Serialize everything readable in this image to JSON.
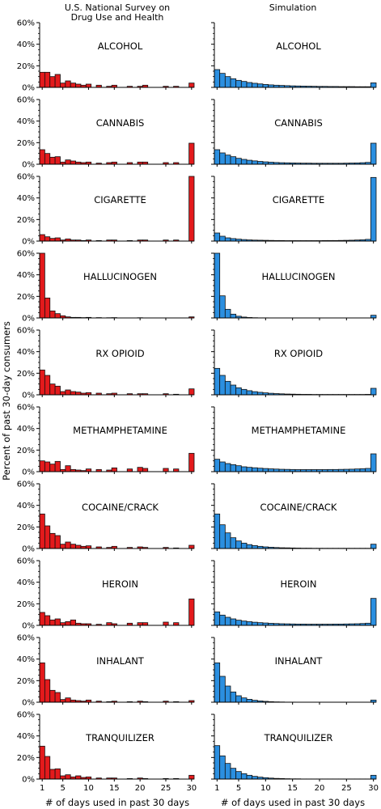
{
  "chart_data": {
    "type": "bar",
    "column_titles": [
      "U.S. National Survey on\nDrug Use and Health",
      "Simulation"
    ],
    "xlabel": "# of days used in past 30 days",
    "ylabel": "Percent of past 30-day consumers",
    "x_ticks": [
      1,
      5,
      10,
      15,
      20,
      25,
      30
    ],
    "y_ticks": [
      "0%",
      "20%",
      "40%",
      "60%"
    ],
    "ylim": [
      0,
      60
    ],
    "xlim": [
      0.5,
      30.5
    ],
    "colors": {
      "survey": "#e31a1c",
      "simulation": "#2b8fe0",
      "edge": "#111111"
    },
    "panels": [
      {
        "drug": "ALCOHOL",
        "survey": [
          14,
          14,
          10,
          12,
          4,
          6,
          4,
          3,
          2,
          3,
          0,
          2,
          0,
          1,
          2,
          0,
          0,
          1,
          0,
          1,
          2,
          0,
          0,
          0,
          1,
          0,
          1,
          0,
          0,
          4
        ],
        "simulation": [
          16.5,
          13,
          10,
          8,
          6.5,
          5.5,
          4.5,
          3.8,
          3.2,
          2.7,
          2.3,
          2,
          1.8,
          1.6,
          1.4,
          1.3,
          1.2,
          1.1,
          1,
          0.9,
          0.9,
          0.8,
          0.8,
          0.7,
          0.7,
          0.7,
          0.6,
          0.6,
          0.6,
          4.2
        ]
      },
      {
        "drug": "CANNABIS",
        "survey": [
          13.5,
          10,
          6.5,
          7,
          2,
          4,
          3,
          2,
          1.5,
          2,
          0,
          1,
          0,
          1.5,
          2,
          0,
          0,
          1.5,
          0,
          2,
          2,
          0,
          0,
          0,
          1.5,
          0,
          1.5,
          0,
          0,
          19.5
        ],
        "simulation": [
          13.5,
          10.5,
          8.5,
          7,
          5.5,
          4.5,
          3.7,
          3.1,
          2.6,
          2.2,
          1.9,
          1.6,
          1.4,
          1.3,
          1.2,
          1.1,
          1,
          1,
          0.9,
          0.9,
          0.9,
          0.9,
          0.9,
          0.9,
          1,
          1.1,
          1.2,
          1.4,
          1.7,
          19.5
        ]
      },
      {
        "drug": "CIGARETTE",
        "survey": [
          6,
          4,
          2.5,
          3,
          1,
          2,
          1,
          1,
          0.5,
          1,
          0,
          0.5,
          0,
          1,
          1,
          0,
          0,
          0.5,
          0,
          1,
          1,
          0,
          0,
          0,
          1,
          0,
          1,
          0,
          0,
          61
        ],
        "simulation": [
          7.5,
          4.5,
          3,
          2.3,
          1.8,
          1.4,
          1.1,
          0.9,
          0.8,
          0.7,
          0.6,
          0.5,
          0.5,
          0.4,
          0.4,
          0.4,
          0.4,
          0.4,
          0.4,
          0.4,
          0.5,
          0.5,
          0.5,
          0.6,
          0.7,
          0.8,
          1,
          1.2,
          1.6,
          59
        ]
      },
      {
        "drug": "HALLUCINOGEN",
        "survey": [
          60,
          18.5,
          6.5,
          4,
          2,
          1,
          0.5,
          0.5,
          0.3,
          0.5,
          0,
          0.3,
          0,
          0.2,
          0.3,
          0,
          0,
          0,
          0,
          0.2,
          0,
          0,
          0,
          0,
          0,
          0,
          0,
          0,
          0,
          1
        ],
        "simulation": [
          60,
          20.5,
          8,
          3.5,
          1.6,
          0.8,
          0.4,
          0.2,
          0.1,
          0.1,
          0,
          0,
          0,
          0,
          0,
          0,
          0,
          0,
          0,
          0,
          0,
          0,
          0,
          0,
          0,
          0,
          0,
          0,
          0,
          2.5
        ]
      },
      {
        "drug": "RX OPIOID",
        "survey": [
          23,
          18,
          10,
          8,
          3,
          4.5,
          3,
          2.5,
          1.5,
          2,
          0,
          1.5,
          0,
          1,
          1.5,
          0,
          0,
          1,
          0,
          1,
          1,
          0,
          0,
          0,
          1,
          0,
          0.5,
          0,
          0,
          5.5
        ],
        "simulation": [
          24.5,
          18,
          12.5,
          9,
          6.5,
          5,
          3.8,
          2.9,
          2.3,
          1.8,
          1.4,
          1.1,
          0.9,
          0.7,
          0.6,
          0.5,
          0.4,
          0.4,
          0.3,
          0.3,
          0.3,
          0.3,
          0.3,
          0.3,
          0.3,
          0.3,
          0.3,
          0.3,
          0.4,
          6
        ]
      },
      {
        "drug": "METHAMPHETAMINE",
        "survey": [
          10,
          9,
          7,
          9.5,
          2,
          5.5,
          2,
          1.5,
          1,
          2.5,
          0,
          2,
          0,
          1.5,
          3.5,
          0,
          0,
          2.5,
          0,
          4,
          3,
          0,
          0,
          0,
          3,
          0,
          2.5,
          0,
          0,
          17
        ],
        "simulation": [
          11.5,
          9,
          7.5,
          6.5,
          5.5,
          4.5,
          4,
          3.6,
          3.2,
          2.9,
          2.6,
          2.4,
          2.2,
          2.1,
          2,
          1.9,
          1.9,
          1.9,
          1.9,
          1.9,
          1.9,
          2,
          2,
          2.1,
          2.2,
          2.3,
          2.5,
          2.7,
          3,
          16.5
        ]
      },
      {
        "drug": "COCAINE/CRACK",
        "survey": [
          32,
          21,
          14,
          12,
          4,
          6,
          4,
          3,
          2,
          2.5,
          0,
          1.5,
          0,
          1,
          2,
          0,
          0,
          1,
          0,
          1.5,
          1,
          0,
          0,
          0,
          1,
          0,
          0.5,
          0,
          0,
          3
        ],
        "simulation": [
          32,
          22,
          14.5,
          10,
          7,
          5,
          3.6,
          2.7,
          2,
          1.5,
          1.2,
          0.9,
          0.7,
          0.6,
          0.5,
          0.4,
          0.3,
          0.3,
          0.2,
          0.2,
          0.2,
          0.2,
          0.2,
          0.2,
          0.2,
          0.2,
          0.2,
          0.2,
          0.2,
          4
        ]
      },
      {
        "drug": "HEROIN",
        "survey": [
          12,
          9,
          5,
          6,
          2.5,
          3.5,
          5,
          2,
          1.5,
          1.5,
          0,
          1,
          0,
          2.5,
          1.5,
          0,
          0,
          2,
          0,
          2.5,
          2.5,
          0,
          0,
          0,
          3,
          0,
          2.5,
          0,
          0,
          24.5
        ],
        "simulation": [
          12.5,
          9.5,
          7.5,
          6,
          4.8,
          4,
          3.4,
          2.9,
          2.5,
          2.2,
          1.9,
          1.7,
          1.5,
          1.4,
          1.3,
          1.2,
          1.2,
          1.1,
          1.1,
          1.1,
          1.1,
          1.1,
          1.2,
          1.2,
          1.3,
          1.4,
          1.5,
          1.7,
          2,
          25
        ]
      },
      {
        "drug": "INHALANT",
        "survey": [
          36.5,
          21,
          11,
          9,
          2.5,
          4,
          2,
          1.5,
          1,
          2,
          0,
          1,
          0,
          0.5,
          1,
          0,
          0,
          0.5,
          0,
          1,
          0.5,
          0,
          0,
          0,
          1,
          0,
          0.5,
          0,
          0,
          1.5
        ],
        "simulation": [
          36.5,
          24,
          15,
          9.5,
          6,
          4,
          2.7,
          1.8,
          1.2,
          0.8,
          0.5,
          0.3,
          0.2,
          0.1,
          0.1,
          0,
          0,
          0,
          0,
          0,
          0,
          0,
          0,
          0,
          0,
          0,
          0,
          0,
          0,
          2
        ]
      },
      {
        "drug": "TRANQUILIZER",
        "survey": [
          30.5,
          21,
          9,
          9.5,
          3,
          4,
          2,
          3,
          1.5,
          2,
          0,
          1,
          0,
          1,
          1,
          0,
          0,
          0.5,
          0,
          1,
          0.5,
          0,
          0,
          0,
          0.5,
          0,
          0.5,
          0,
          0,
          3.5
        ],
        "simulation": [
          31,
          21.5,
          14.5,
          10,
          7,
          5,
          3.5,
          2.5,
          1.8,
          1.3,
          0.9,
          0.6,
          0.5,
          0.3,
          0.2,
          0.2,
          0.1,
          0.1,
          0.1,
          0.1,
          0.1,
          0.1,
          0.1,
          0.1,
          0.1,
          0.1,
          0.1,
          0.1,
          0.1,
          3.5
        ]
      }
    ]
  }
}
